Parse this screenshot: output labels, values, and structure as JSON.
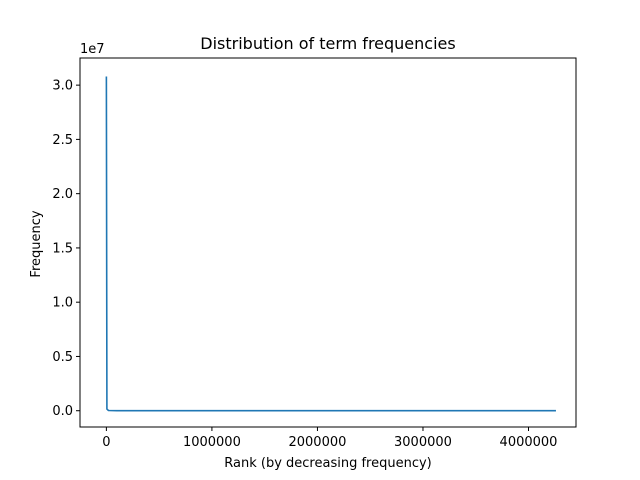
{
  "chart_data": {
    "type": "line",
    "title": "Distribution of term frequencies",
    "xlabel": "Rank (by decreasing frequency)",
    "ylabel": "Frequency",
    "y_offset_label": "1e7",
    "xlim": [
      -250000,
      4450000
    ],
    "ylim": [
      -1500000,
      32500000
    ],
    "x_ticks": [
      0,
      1000000,
      2000000,
      3000000,
      4000000
    ],
    "x_tick_labels": [
      "0",
      "1000000",
      "2000000",
      "3000000",
      "4000000"
    ],
    "y_ticks": [
      0,
      5000000,
      10000000,
      15000000,
      20000000,
      25000000,
      30000000
    ],
    "y_tick_labels": [
      "0.0",
      "0.5",
      "1.0",
      "1.5",
      "2.0",
      "2.5",
      "3.0"
    ],
    "grid": false,
    "series": [
      {
        "color": "#1f77b4",
        "x": [
          0,
          5000,
          20000,
          100000,
          1000000,
          2000000,
          3000000,
          4260000
        ],
        "y": [
          30800000,
          150000,
          20000,
          2000,
          50,
          10,
          3,
          1
        ]
      }
    ]
  }
}
